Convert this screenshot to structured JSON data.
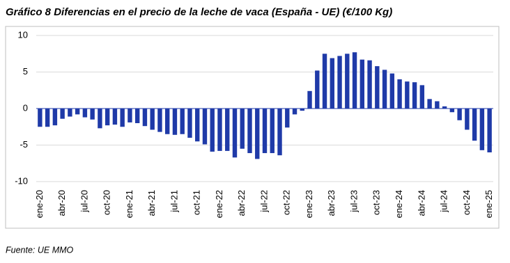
{
  "chart_data": {
    "type": "bar",
    "title": "Gráfico 8 Diferencias en el precio de la leche de vaca (España - UE) (€/100 Kg)",
    "source": "Fuente: UE MMO",
    "categories": [
      "ene-20",
      null,
      null,
      "abr-20",
      null,
      null,
      "jul-20",
      null,
      null,
      "oct-20",
      null,
      null,
      "ene-21",
      null,
      null,
      "abr-21",
      null,
      null,
      "jul-21",
      null,
      null,
      "oct-21",
      null,
      null,
      "ene-22",
      null,
      null,
      "abr-22",
      null,
      null,
      "jul-22",
      null,
      null,
      "oct-22",
      null,
      null,
      "ene-23",
      null,
      null,
      "abr-23",
      null,
      null,
      "jul-23",
      null,
      null,
      "oct-23",
      null,
      null,
      "ene-24",
      null,
      null,
      "abr-24",
      null,
      null,
      "jul-24",
      null,
      null,
      "oct-24",
      null,
      null,
      "ene-25"
    ],
    "values": [
      -2.5,
      -2.5,
      -2.3,
      -1.4,
      -1.1,
      -0.8,
      -1.2,
      -1.5,
      -2.7,
      -2.3,
      -2.2,
      -2.5,
      -1.9,
      -2.0,
      -2.4,
      -2.9,
      -3.2,
      -3.5,
      -3.6,
      -3.5,
      -4.0,
      -4.5,
      -4.9,
      -5.9,
      -5.8,
      -5.8,
      -6.7,
      -5.5,
      -6.1,
      -6.9,
      -6.1,
      -6.1,
      -6.4,
      -2.6,
      -0.8,
      -0.3,
      2.4,
      5.2,
      7.5,
      6.9,
      7.2,
      7.5,
      7.7,
      6.7,
      6.6,
      5.8,
      5.3,
      4.8,
      4.0,
      3.7,
      3.6,
      3.2,
      1.3,
      1.0,
      0.3,
      -0.5,
      -1.6,
      -2.9,
      -4.4,
      -5.7,
      -6.0
    ],
    "color": "#1f3aa8",
    "ylim": [
      -10,
      10
    ],
    "yticks": [
      -10,
      -5,
      0,
      5,
      10
    ],
    "grid": true
  }
}
